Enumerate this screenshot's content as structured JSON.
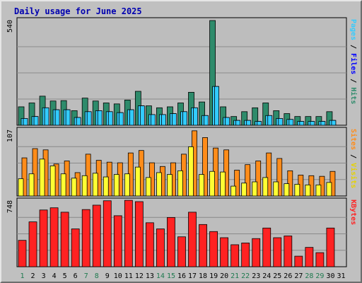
{
  "title": "Daily usage for June 2025",
  "chart_data": {
    "type": "bar",
    "days": [
      "1",
      "2",
      "3",
      "4",
      "5",
      "6",
      "7",
      "8",
      "9",
      "10",
      "11",
      "12",
      "13",
      "14",
      "15",
      "16",
      "17",
      "18",
      "19",
      "20",
      "21",
      "22",
      "23",
      "24",
      "25",
      "26",
      "27",
      "28",
      "29",
      "30",
      "31"
    ],
    "weekend_days": [
      "1",
      "7",
      "8",
      "14",
      "15",
      "21",
      "22",
      "28",
      "29"
    ],
    "colors": {
      "hits": "#2e8b6b",
      "files": "#33ccff",
      "pages": "#33ccff",
      "visits": "#ff8c1a",
      "sites": "#ffff33",
      "kbytes": "#ff2222",
      "weekend_label": "#1f7a4f",
      "weekday_label": "#000000"
    },
    "panels": [
      {
        "id": "hits_files_pages",
        "max_label": "540",
        "ymax": 540,
        "right_label_parts": [
          {
            "text": "Pages",
            "color": "#33ccff"
          },
          {
            "text": " / ",
            "color": "#000000"
          },
          {
            "text": "Files",
            "color": "#0000ff"
          },
          {
            "text": " / ",
            "color": "#000000"
          },
          {
            "text": "Hits",
            "color": "#2e8b6b"
          }
        ],
        "series": [
          {
            "key": "hits",
            "values": [
              95,
              115,
              150,
              125,
              127,
              75,
              140,
              125,
              115,
              110,
              130,
              175,
              100,
              90,
              95,
              115,
              170,
              120,
              540,
              95,
              45,
              70,
              90,
              115,
              75,
              60,
              45,
              45,
              45,
              70,
              0
            ]
          },
          {
            "key": "files",
            "values": [
              35,
              45,
              90,
              80,
              80,
              40,
              70,
              75,
              70,
              65,
              80,
              100,
              55,
              55,
              60,
              70,
              90,
              50,
              200,
              40,
              25,
              25,
              20,
              50,
              35,
              30,
              20,
              20,
              20,
              25,
              0
            ]
          },
          {
            "key": "pages",
            "values": [
              35,
              45,
              90,
              80,
              80,
              40,
              70,
              75,
              70,
              65,
              80,
              100,
              55,
              55,
              60,
              70,
              90,
              50,
              200,
              40,
              25,
              25,
              20,
              50,
              35,
              30,
              20,
              20,
              20,
              25,
              0
            ]
          }
        ]
      },
      {
        "id": "visits_sites",
        "max_label": "107",
        "ymax": 107,
        "right_label_parts": [
          {
            "text": "Sites",
            "color": "#ff8c1a"
          },
          {
            "text": " / ",
            "color": "#000000"
          },
          {
            "text": "Visits",
            "color": "#e6d200"
          }
        ],
        "series": [
          {
            "key": "visits",
            "values": [
              62,
              77,
              75,
              52,
              57,
              38,
              68,
              58,
              55,
              54,
              70,
              74,
              54,
              48,
              54,
              68,
              106,
              95,
              78,
              75,
              42,
              51,
              57,
              70,
              61,
              41,
              34,
              33,
              32,
              40,
              0
            ]
          },
          {
            "key": "sites",
            "values": [
              28,
              36,
              60,
              49,
              36,
              29,
              33,
              37,
              31,
              35,
              36,
              47,
              30,
              38,
              35,
              41,
              80,
              35,
              40,
              39,
              16,
              21,
              23,
              30,
              23,
              20,
              19,
              18,
              18,
              22,
              0
            ]
          }
        ]
      },
      {
        "id": "kbytes",
        "max_label": "748",
        "ymax": 748,
        "right_label_parts": [
          {
            "text": "KBytes",
            "color": "#ff2222"
          }
        ],
        "series": [
          {
            "key": "kbytes",
            "values": [
              300,
              510,
              645,
              670,
              620,
              430,
              650,
              700,
              750,
              580,
              755,
              740,
              500,
              430,
              560,
              340,
              620,
              480,
              400,
              330,
              250,
              270,
              320,
              440,
              330,
              350,
              120,
              220,
              160,
              440,
              0
            ]
          }
        ]
      }
    ]
  }
}
